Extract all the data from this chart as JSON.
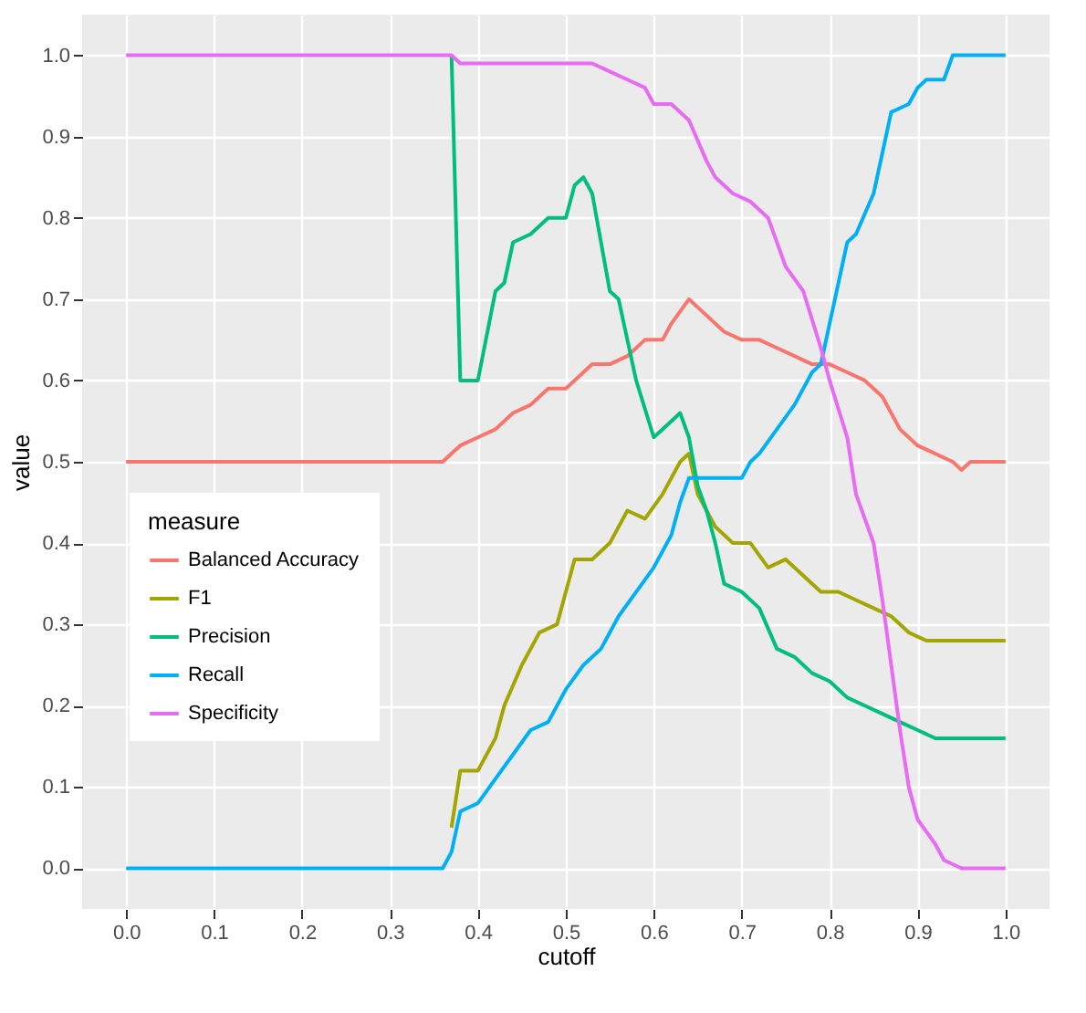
{
  "chart_data": {
    "type": "line",
    "xlabel": "cutoff",
    "ylabel": "value",
    "legend_title": "measure",
    "legend": "bottom left",
    "grid": true,
    "line_style": "solid",
    "marker": "none",
    "xlim": [
      -0.05,
      1.05
    ],
    "ylim": [
      -0.05,
      1.05
    ],
    "xticks": [
      {
        "value": 0,
        "label": "0.0"
      },
      0.1,
      0.2,
      0.3,
      0.4,
      0.5,
      0.6,
      0.7,
      0.8,
      0.9,
      {
        "value": 1,
        "label": "1.0"
      }
    ],
    "yticks": [
      {
        "value": 0,
        "label": "0.0"
      },
      0.1,
      0.2,
      0.3,
      0.4,
      0.5,
      0.6,
      0.7,
      0.8,
      0.9,
      {
        "value": 1,
        "label": "1.0"
      }
    ],
    "series": [
      {
        "name": "Balanced Accuracy",
        "color": "#f8766d",
        "x": [
          0,
          0.36,
          0.37,
          0.38,
          0.4,
          0.42,
          0.44,
          0.46,
          0.48,
          0.5,
          0.52,
          0.53,
          0.55,
          0.57,
          0.59,
          0.61,
          0.62,
          0.64,
          0.66,
          0.68,
          0.7,
          0.72,
          0.74,
          0.76,
          0.78,
          0.8,
          0.82,
          0.84,
          0.86,
          0.88,
          0.9,
          0.92,
          0.94,
          0.95,
          0.96,
          1
        ],
        "values": [
          0.5,
          0.5,
          0.51,
          0.52,
          0.53,
          0.54,
          0.56,
          0.57,
          0.59,
          0.59,
          0.61,
          0.62,
          0.62,
          0.63,
          0.65,
          0.65,
          0.67,
          0.7,
          0.68,
          0.66,
          0.65,
          0.65,
          0.64,
          0.63,
          0.62,
          0.62,
          0.61,
          0.6,
          0.58,
          0.54,
          0.52,
          0.51,
          0.5,
          0.49,
          0.5,
          0.5
        ]
      },
      {
        "name": "F1",
        "color": "#a3a500",
        "x": [
          0.37,
          0.38,
          0.4,
          0.42,
          0.43,
          0.45,
          0.47,
          0.49,
          0.51,
          0.53,
          0.55,
          0.57,
          0.59,
          0.61,
          0.63,
          0.64,
          0.65,
          0.67,
          0.69,
          0.71,
          0.73,
          0.75,
          0.77,
          0.79,
          0.81,
          0.83,
          0.85,
          0.87,
          0.89,
          0.91,
          0.93,
          1
        ],
        "values": [
          0.05,
          0.12,
          0.12,
          0.16,
          0.2,
          0.25,
          0.29,
          0.3,
          0.38,
          0.38,
          0.4,
          0.44,
          0.43,
          0.46,
          0.5,
          0.51,
          0.46,
          0.42,
          0.4,
          0.4,
          0.37,
          0.38,
          0.36,
          0.34,
          0.34,
          0.33,
          0.32,
          0.31,
          0.29,
          0.28,
          0.28,
          0.28
        ]
      },
      {
        "name": "Precision",
        "color": "#00bf7d",
        "x": [
          0.37,
          0.38,
          0.4,
          0.42,
          0.43,
          0.44,
          0.46,
          0.48,
          0.5,
          0.51,
          0.52,
          0.53,
          0.55,
          0.56,
          0.58,
          0.6,
          0.62,
          0.63,
          0.64,
          0.65,
          0.66,
          0.67,
          0.68,
          0.7,
          0.72,
          0.74,
          0.76,
          0.78,
          0.8,
          0.82,
          0.84,
          0.86,
          0.88,
          0.9,
          0.92,
          0.96,
          1
        ],
        "values": [
          1,
          0.6,
          0.6,
          0.71,
          0.72,
          0.77,
          0.78,
          0.8,
          0.8,
          0.84,
          0.85,
          0.83,
          0.71,
          0.7,
          0.6,
          0.53,
          0.55,
          0.56,
          0.53,
          0.47,
          0.44,
          0.4,
          0.35,
          0.34,
          0.32,
          0.27,
          0.26,
          0.24,
          0.23,
          0.21,
          0.2,
          0.19,
          0.18,
          0.17,
          0.16,
          0.16,
          0.16
        ]
      },
      {
        "name": "Recall",
        "color": "#00b0f6",
        "x": [
          0,
          0.36,
          0.37,
          0.38,
          0.4,
          0.42,
          0.44,
          0.46,
          0.48,
          0.5,
          0.52,
          0.54,
          0.56,
          0.58,
          0.6,
          0.62,
          0.63,
          0.64,
          0.7,
          0.71,
          0.72,
          0.74,
          0.76,
          0.78,
          0.79,
          0.8,
          0.82,
          0.83,
          0.85,
          0.86,
          0.87,
          0.89,
          0.9,
          0.91,
          0.93,
          0.94,
          1
        ],
        "values": [
          0,
          0,
          0.02,
          0.07,
          0.08,
          0.11,
          0.14,
          0.17,
          0.18,
          0.22,
          0.25,
          0.27,
          0.31,
          0.34,
          0.37,
          0.41,
          0.45,
          0.48,
          0.48,
          0.5,
          0.51,
          0.54,
          0.57,
          0.61,
          0.62,
          0.67,
          0.77,
          0.78,
          0.83,
          0.88,
          0.93,
          0.94,
          0.96,
          0.97,
          0.97,
          1,
          1
        ]
      },
      {
        "name": "Specificity",
        "color": "#e76bf3",
        "x": [
          0,
          0.37,
          0.38,
          0.53,
          0.55,
          0.57,
          0.59,
          0.6,
          0.62,
          0.64,
          0.66,
          0.67,
          0.69,
          0.71,
          0.73,
          0.75,
          0.77,
          0.79,
          0.8,
          0.82,
          0.83,
          0.85,
          0.86,
          0.87,
          0.88,
          0.89,
          0.9,
          0.92,
          0.93,
          0.95,
          1
        ],
        "values": [
          1,
          1,
          0.99,
          0.99,
          0.98,
          0.97,
          0.96,
          0.94,
          0.94,
          0.92,
          0.87,
          0.85,
          0.83,
          0.82,
          0.8,
          0.74,
          0.71,
          0.64,
          0.6,
          0.53,
          0.46,
          0.4,
          0.33,
          0.25,
          0.17,
          0.1,
          0.06,
          0.03,
          0.01,
          0,
          0
        ]
      }
    ]
  }
}
